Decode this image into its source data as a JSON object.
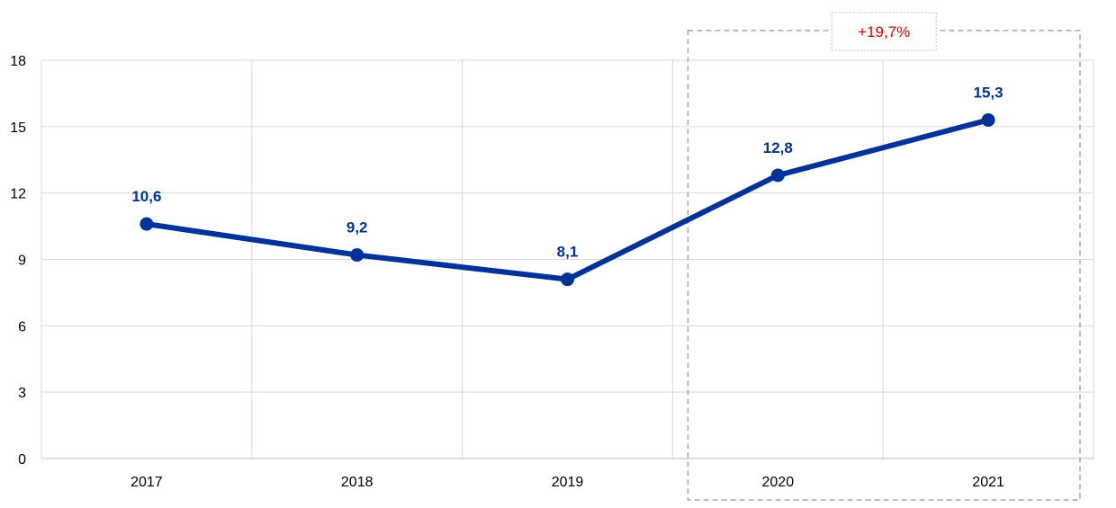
{
  "chart_data": {
    "type": "line",
    "categories": [
      "2017",
      "2018",
      "2019",
      "2020",
      "2021"
    ],
    "series": [
      {
        "values": [
          10.6,
          9.2,
          8.1,
          12.8,
          15.3
        ],
        "color": "#003299"
      }
    ],
    "data_labels": [
      "10,6",
      "9,2",
      "8,1",
      "12,8",
      "15,3"
    ],
    "ylim": [
      0,
      18
    ],
    "yticks": [
      0,
      3,
      6,
      9,
      12,
      15,
      18
    ],
    "grid": true,
    "legend": "none",
    "annotation": {
      "text": "+19,7%",
      "color": "#e00000",
      "highlight_categories": [
        "2020",
        "2021"
      ]
    }
  }
}
